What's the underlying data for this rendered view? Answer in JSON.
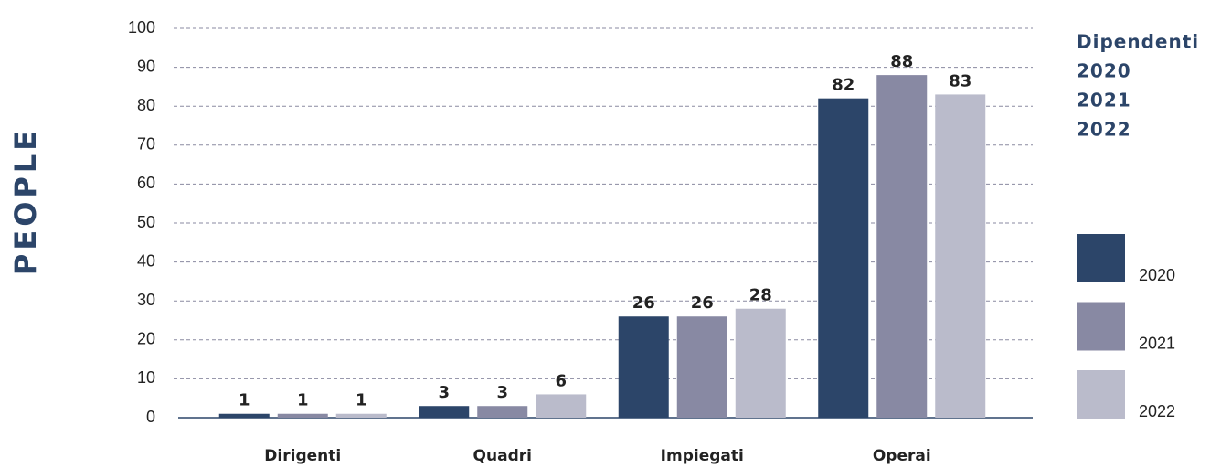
{
  "chart_data": {
    "type": "bar",
    "title": "Dipendenti",
    "y_label": "PEOPLE",
    "categories": [
      "Dirigenti",
      "Quadri",
      "Impiegati",
      "Operai"
    ],
    "series": [
      {
        "name": "2020",
        "color": "#2c4569",
        "values": [
          1,
          3,
          26,
          82
        ]
      },
      {
        "name": "2021",
        "color": "#8889a3",
        "values": [
          1,
          3,
          26,
          88
        ]
      },
      {
        "name": "2022",
        "color": "#babbcb",
        "values": [
          1,
          6,
          28,
          83
        ]
      }
    ],
    "ylim": [
      0,
      100
    ],
    "yticks": [
      0,
      10,
      20,
      30,
      40,
      50,
      60,
      70,
      80,
      90,
      100
    ],
    "grid": true,
    "legend": "right"
  }
}
